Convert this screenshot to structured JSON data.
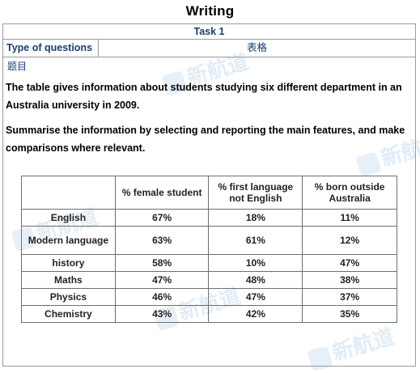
{
  "page": {
    "title": "Writing",
    "task": "Task 1",
    "type_label": "Type of questions",
    "type_value": "表格",
    "section_label": "题目",
    "prompt_1": "The table gives information about students studying six different department in an Australia university in 2009.",
    "prompt_2": "Summarise the information by selecting and reporting the main features, and make comparisons where relevant."
  },
  "watermark": {
    "text": "新航道",
    "color": "#78aad7"
  },
  "table": {
    "headers": [
      "",
      "% female student",
      "% first language not English",
      "% born outside Australia"
    ],
    "rows": [
      {
        "label": "English",
        "values": [
          "67%",
          "18%",
          "11%"
        ]
      },
      {
        "label": "Modern language",
        "values": [
          "63%",
          "61%",
          "12%"
        ]
      },
      {
        "label": "history",
        "values": [
          "58%",
          "10%",
          "47%"
        ]
      },
      {
        "label": "Maths",
        "values": [
          "47%",
          "48%",
          "38%"
        ]
      },
      {
        "label": "Physics",
        "values": [
          "46%",
          "47%",
          "37%"
        ]
      },
      {
        "label": "Chemistry",
        "values": [
          "43%",
          "42%",
          "35%"
        ]
      }
    ]
  }
}
